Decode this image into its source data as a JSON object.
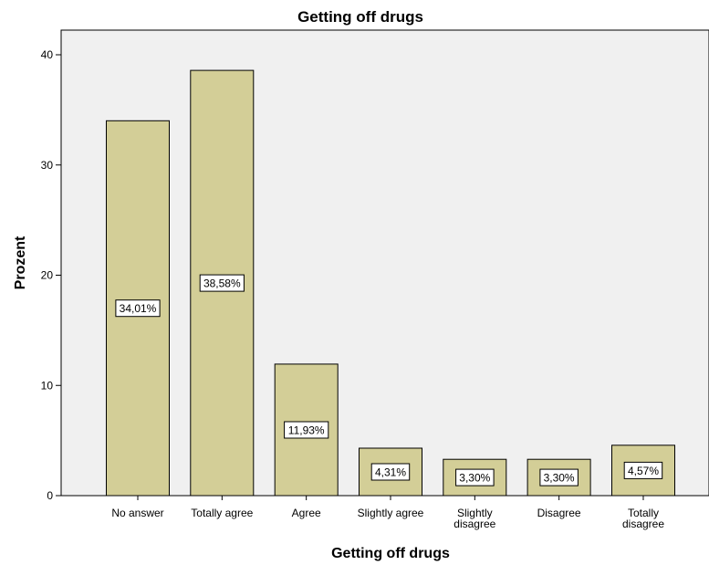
{
  "chart_data": {
    "type": "bar",
    "title": "Getting off drugs",
    "xlabel": "Getting off drugs",
    "ylabel": "Prozent",
    "categories": [
      [
        "No answer"
      ],
      [
        "Totally agree"
      ],
      [
        "Agree"
      ],
      [
        "Slightly agree"
      ],
      [
        "Slightly",
        "disagree"
      ],
      [
        "Disagree"
      ],
      [
        "Totally",
        "disagree"
      ]
    ],
    "values": [
      34.01,
      38.58,
      11.93,
      4.31,
      3.3,
      3.3,
      4.57
    ],
    "data_labels": [
      "34,01%",
      "38,58%",
      "11,93%",
      "4,31%",
      "3,30%",
      "3,30%",
      "4,57%"
    ],
    "ylim": [
      0,
      42
    ],
    "yticks": [
      0,
      10,
      20,
      30,
      40
    ],
    "grid": false,
    "colors": {
      "plot_background": "#f0f0f0",
      "bar_fill": "#d3ce97",
      "bar_stroke": "#000000",
      "label_box": "#ffffff"
    }
  }
}
